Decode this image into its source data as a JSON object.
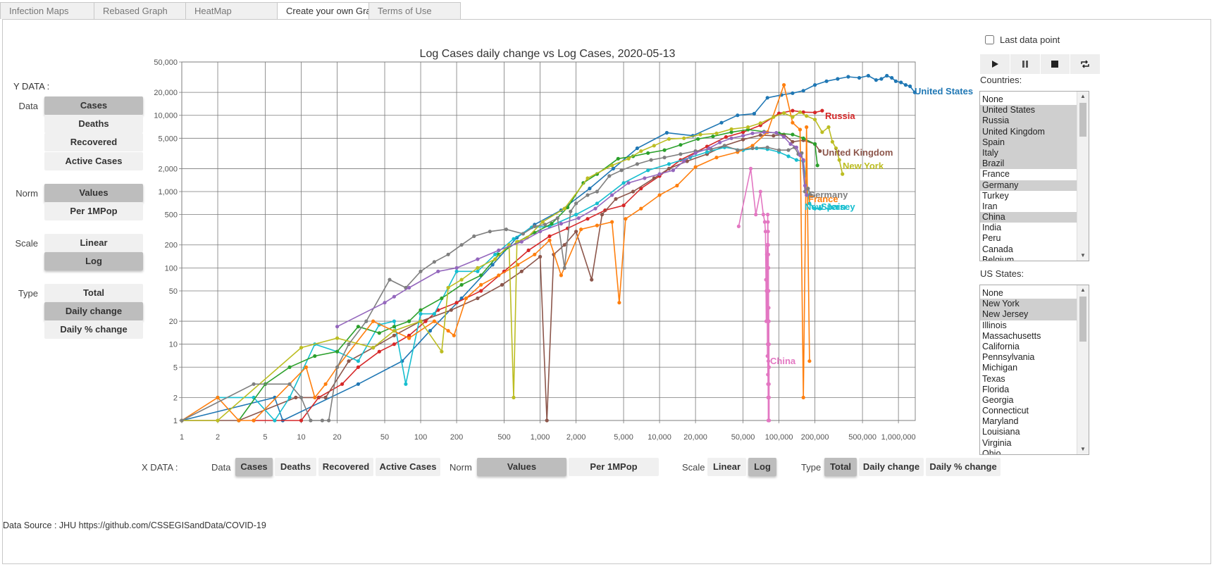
{
  "tabs": [
    {
      "label": "Infection Maps",
      "active": false
    },
    {
      "label": "Rebased Graph",
      "active": false
    },
    {
      "label": "HeatMap",
      "active": false
    },
    {
      "label": "Create your own Gra|",
      "active": true
    },
    {
      "label": "Terms of Use",
      "active": false
    }
  ],
  "ydata": {
    "title": "Y DATA :",
    "rows": [
      {
        "label": "Data",
        "options": [
          "Cases",
          "Deaths",
          "Recovered",
          "Active Cases"
        ],
        "selected": "Cases"
      },
      {
        "label": "Norm",
        "options": [
          "Values",
          "Per 1MPop"
        ],
        "selected": "Values"
      },
      {
        "label": "Scale",
        "options": [
          "Linear",
          "Log"
        ],
        "selected": "Log"
      },
      {
        "label": "Type",
        "options": [
          "Total",
          "Daily change",
          "Daily % change"
        ],
        "selected": "Daily change"
      }
    ]
  },
  "xdata": {
    "title": "X DATA :",
    "data_label": "Data",
    "data_options": [
      "Cases",
      "Deaths",
      "Recovered",
      "Active Cases"
    ],
    "data_selected": "Cases",
    "norm_label": "Norm",
    "norm_options": [
      "Values",
      "Per 1MPop"
    ],
    "norm_selected": "Values",
    "scale_label": "Scale",
    "scale_options": [
      "Linear",
      "Log"
    ],
    "scale_selected": "Log",
    "type_label": "Type",
    "type_options": [
      "Total",
      "Daily change",
      "Daily % change"
    ],
    "type_selected": "Total"
  },
  "controls": {
    "last_data_point_label": "Last data point",
    "last_data_point_checked": false,
    "media_icons": [
      "play-icon",
      "pause-icon",
      "stop-icon",
      "loop-icon"
    ]
  },
  "countries": {
    "title": "Countries:",
    "items": [
      {
        "label": "None",
        "selected": false
      },
      {
        "label": "United States",
        "selected": true
      },
      {
        "label": "Russia",
        "selected": true
      },
      {
        "label": "United Kingdom",
        "selected": true
      },
      {
        "label": "Spain",
        "selected": true
      },
      {
        "label": "Italy",
        "selected": true
      },
      {
        "label": "Brazil",
        "selected": true
      },
      {
        "label": "France",
        "selected": false
      },
      {
        "label": "Germany",
        "selected": true
      },
      {
        "label": "Turkey",
        "selected": false
      },
      {
        "label": "Iran",
        "selected": false
      },
      {
        "label": "China",
        "selected": true
      },
      {
        "label": "India",
        "selected": false
      },
      {
        "label": "Peru",
        "selected": false
      },
      {
        "label": "Canada",
        "selected": false
      },
      {
        "label": "Belgium",
        "selected": false
      }
    ]
  },
  "us_states": {
    "title": "US States:",
    "items": [
      {
        "label": "None",
        "selected": false
      },
      {
        "label": "New York",
        "selected": true
      },
      {
        "label": "New Jersey",
        "selected": true
      },
      {
        "label": "Illinois",
        "selected": false
      },
      {
        "label": "Massachusetts",
        "selected": false
      },
      {
        "label": "California",
        "selected": false
      },
      {
        "label": "Pennsylvania",
        "selected": false
      },
      {
        "label": "Michigan",
        "selected": false
      },
      {
        "label": "Texas",
        "selected": false
      },
      {
        "label": "Florida",
        "selected": false
      },
      {
        "label": "Georgia",
        "selected": false
      },
      {
        "label": "Connecticut",
        "selected": false
      },
      {
        "label": "Maryland",
        "selected": false
      },
      {
        "label": "Louisiana",
        "selected": false
      },
      {
        "label": "Virginia",
        "selected": false
      },
      {
        "label": "Ohio",
        "selected": false
      }
    ]
  },
  "footer": {
    "text": "Data Source : JHU https://github.com/CSSEGISandData/COVID-19"
  },
  "chart_data": {
    "type": "line",
    "title": "Log Cases daily change vs Log Cases, 2020-05-13",
    "xscale": "log",
    "yscale": "log",
    "xlim": [
      1,
      1400000
    ],
    "ylim": [
      0.8,
      50000
    ],
    "grid": true,
    "x_ticks": [
      1,
      2,
      5,
      10,
      20,
      50,
      100,
      200,
      500,
      1000,
      2000,
      5000,
      10000,
      20000,
      50000,
      100000,
      200000,
      500000,
      1000000
    ],
    "x_tick_labels": [
      "1",
      "2",
      "5",
      "10",
      "20",
      "50",
      "100",
      "200",
      "500",
      "1,000",
      "2,000",
      "5,000",
      "10,000",
      "20,000",
      "50,000",
      "100,000",
      "200,000",
      "500,000",
      "1,000,000"
    ],
    "y_ticks": [
      1,
      2,
      5,
      10,
      20,
      50,
      100,
      200,
      500,
      1000,
      2000,
      5000,
      10000,
      20000,
      50000
    ],
    "y_tick_labels": [
      "1",
      "2",
      "5",
      "10",
      "20",
      "50",
      "100",
      "200",
      "500",
      "1,000",
      "2,000",
      "5,000",
      "10,000",
      "20,000",
      "50,000"
    ],
    "series": [
      {
        "name": "United States",
        "color": "#1f77b4",
        "x": [
          1,
          6,
          7,
          30,
          70,
          120,
          220,
          400,
          640,
          900,
          1500,
          2600,
          4100,
          6500,
          11500,
          19000,
          33000,
          45000,
          62000,
          80000,
          105000,
          130000,
          160000,
          200000,
          250000,
          310000,
          380000,
          470000,
          560000,
          650000,
          720000,
          800000,
          880000,
          950000,
          1050000,
          1150000,
          1250000,
          1370000
        ],
        "y": [
          1,
          2,
          1,
          3,
          6,
          15,
          40,
          110,
          250,
          370,
          570,
          1100,
          2000,
          3700,
          5900,
          5400,
          8000,
          10000,
          10500,
          17000,
          18500,
          19500,
          21000,
          25000,
          28000,
          30000,
          32000,
          31000,
          33000,
          29000,
          30000,
          33000,
          31000,
          28000,
          27000,
          25000,
          24000,
          20000
        ],
        "label_x": 1400000,
        "label_y": 20000
      },
      {
        "name": "Russia",
        "color": "#d62728",
        "x": [
          4,
          10,
          14,
          22,
          30,
          45,
          60,
          80,
          110,
          140,
          200,
          320,
          500,
          800,
          1200,
          1700,
          2500,
          3500,
          5000,
          7000,
          10000,
          15000,
          25000,
          36000,
          50000,
          70000,
          100000,
          130000,
          160000,
          200000,
          230000
        ],
        "y": [
          1,
          1,
          2,
          3,
          5,
          8,
          10,
          13,
          20,
          28,
          35,
          50,
          90,
          170,
          260,
          330,
          440,
          570,
          660,
          1100,
          1600,
          2600,
          3900,
          5200,
          6000,
          7400,
          10600,
          11500,
          11000,
          10900,
          11500
        ],
        "label_x": 240000,
        "label_y": 10500
      },
      {
        "name": "United Kingdom",
        "color": "#8c564b",
        "x": [
          1,
          3,
          9,
          16,
          25,
          40,
          60,
          100,
          180,
          300,
          480,
          700,
          1000,
          1140,
          1300,
          1600,
          2000,
          2700,
          3300,
          4300,
          6000,
          9000,
          12000,
          17000,
          25000,
          35000,
          50000,
          70000,
          90000,
          110000,
          130000,
          160000,
          200000,
          220000
        ],
        "y": [
          1,
          1,
          2,
          2,
          6,
          9,
          13,
          20,
          28,
          40,
          60,
          90,
          140,
          1,
          150,
          200,
          300,
          70,
          500,
          800,
          1000,
          1500,
          2000,
          2500,
          3100,
          4000,
          4800,
          5500,
          5400,
          5600,
          4500,
          4700,
          4200,
          3400
        ],
        "label_x": 230000,
        "label_y": 3100
      },
      {
        "name": "Spain",
        "color": "#17becf",
        "x": [
          2,
          4,
          6,
          8,
          13,
          20,
          30,
          45,
          60,
          75,
          100,
          130,
          200,
          300,
          420,
          600,
          850,
          1200,
          2000,
          3000,
          5000,
          8000,
          12000,
          18000,
          25000,
          35000,
          50000,
          65000,
          80000,
          100000,
          120000,
          140000,
          160000,
          180000,
          200000,
          220000
        ],
        "y": [
          2,
          2,
          1,
          2,
          10,
          8,
          6,
          18,
          20,
          3,
          25,
          25,
          90,
          90,
          150,
          240,
          340,
          350,
          500,
          700,
          1300,
          1900,
          2300,
          2800,
          3300,
          3800,
          3500,
          3700,
          3600,
          3300,
          2900,
          2600,
          2500,
          700,
          600,
          600
        ],
        "label_x": 225000,
        "label_y": 560
      },
      {
        "name": "Italy",
        "color": "#2ca02c",
        "x": [
          3,
          5,
          8,
          13,
          20,
          30,
          45,
          60,
          80,
          100,
          150,
          220,
          320,
          450,
          650,
          900,
          1250,
          1700,
          2300,
          3000,
          4500,
          6000,
          8000,
          11000,
          15000,
          21000,
          28000,
          40000,
          55000,
          75000,
          100000,
          130000,
          160000,
          200000,
          210000
        ],
        "y": [
          1,
          3,
          5,
          7,
          8,
          17,
          14,
          17,
          20,
          28,
          40,
          60,
          80,
          150,
          220,
          290,
          380,
          620,
          1300,
          1700,
          2700,
          2900,
          3200,
          3500,
          4100,
          4900,
          5300,
          6000,
          6500,
          6100,
          5800,
          5600,
          5000,
          4200,
          2200
        ],
        "label_x": null,
        "label_y": null
      },
      {
        "name": "Brazil",
        "color": "#ff7f0e",
        "x": [
          1,
          2,
          3,
          4,
          11,
          13,
          16,
          20,
          40,
          80,
          130,
          170,
          190,
          240,
          320,
          450,
          650,
          900,
          1200,
          1500,
          2200,
          3000,
          4000,
          4600,
          5200,
          7000,
          10000,
          14000,
          20000,
          30000,
          45000,
          60000,
          80000,
          110000,
          130000,
          150000,
          160000,
          170000,
          180000
        ],
        "y": [
          1,
          2,
          1,
          1,
          5,
          2,
          3,
          5,
          20,
          12,
          20,
          15,
          13,
          40,
          60,
          80,
          110,
          150,
          230,
          80,
          320,
          360,
          400,
          35,
          440,
          600,
          900,
          1200,
          2100,
          2800,
          3300,
          4000,
          6000,
          25000,
          8000,
          6500,
          2,
          7000,
          6
        ],
        "label_x": null,
        "label_y": null
      },
      {
        "name": "New York",
        "color": "#bcbd22",
        "x": [
          1,
          2,
          10,
          20,
          40,
          60,
          100,
          150,
          170,
          220,
          300,
          420,
          550,
          600,
          640,
          780,
          1050,
          1600,
          2500,
          4000,
          5500,
          7000,
          9000,
          12000,
          16000,
          22000,
          30000,
          40000,
          55000,
          70000,
          90000,
          110000,
          130000,
          150000,
          170000,
          200000,
          230000,
          260000,
          280000,
          300000,
          320000,
          340000
        ],
        "y": [
          1,
          1,
          9,
          12,
          9,
          15,
          20,
          8,
          55,
          70,
          100,
          130,
          200,
          2,
          220,
          250,
          400,
          600,
          1500,
          2200,
          2700,
          3400,
          4000,
          4900,
          5000,
          5600,
          5800,
          6600,
          7000,
          7900,
          9500,
          10700,
          9500,
          11000,
          9800,
          8800,
          6000,
          7000,
          4500,
          3700,
          2600,
          1700
        ],
        "label_x": 340000,
        "label_y": 2200
      },
      {
        "name": "New Jersey",
        "color": "#7f7f7f",
        "x": [
          1,
          4,
          8,
          10,
          12,
          15,
          17,
          20,
          25,
          35,
          55,
          75,
          100,
          130,
          170,
          220,
          280,
          380,
          520,
          720,
          900,
          1100,
          1400,
          1600,
          1800,
          2000,
          2500,
          3000,
          3800,
          4800,
          6500,
          8500,
          11000,
          15000,
          20000,
          27000,
          35000,
          45000,
          60000,
          80000,
          100000,
          120000,
          135000,
          145000,
          155000,
          165000,
          175000,
          185000
        ],
        "y": [
          1,
          3,
          3,
          2,
          1,
          1,
          1,
          5,
          10,
          20,
          70,
          55,
          90,
          120,
          150,
          200,
          260,
          300,
          320,
          280,
          350,
          370,
          450,
          100,
          550,
          700,
          900,
          1000,
          1600,
          1900,
          2300,
          2600,
          2800,
          3100,
          3400,
          3600,
          4000,
          3500,
          3700,
          3800,
          3500,
          3500,
          3800,
          3100,
          3200,
          1000,
          1100,
          900
        ],
        "label_x": null,
        "label_y": null
      },
      {
        "name": "Germany",
        "color": "#9467bd",
        "x": [
          20,
          50,
          60,
          80,
          140,
          200,
          300,
          450,
          700,
          1000,
          1500,
          2100,
          2900,
          4000,
          5500,
          7500,
          10000,
          13000,
          16000,
          20000,
          26000,
          32000,
          40000,
          50000,
          60000,
          75000,
          95000,
          110000,
          125000,
          140000,
          150000,
          160000,
          165000,
          170000
        ],
        "y": [
          17,
          35,
          42,
          55,
          90,
          100,
          130,
          170,
          220,
          300,
          380,
          450,
          600,
          900,
          1300,
          1500,
          1700,
          1900,
          2500,
          3200,
          3700,
          4400,
          5000,
          5400,
          5800,
          6000,
          5900,
          5200,
          4200,
          3800,
          3000,
          2600,
          1200,
          900
        ],
        "label_x": null,
        "label_y": null
      },
      {
        "name": "China",
        "color": "#e377c2",
        "x": [
          46000,
          58000,
          64000,
          70000,
          74000,
          76000,
          77000,
          77800,
          78200,
          78600,
          79000,
          79500,
          80000,
          80300,
          80500,
          80700,
          80800,
          80900,
          81000,
          81100,
          81200,
          81300,
          81400,
          81500,
          81600,
          81700,
          81800,
          81900,
          82000,
          82100,
          82200,
          82300,
          82400,
          82500,
          82600,
          82700
        ],
        "y": [
          350,
          2000,
          500,
          1000,
          500,
          400,
          300,
          70,
          20,
          50,
          150,
          200,
          7,
          10,
          500,
          4,
          400,
          3,
          300,
          2,
          200,
          1,
          150,
          6,
          100,
          20,
          50,
          10,
          30,
          5,
          20,
          3,
          10,
          2,
          5,
          1
        ],
        "label_x": 82800,
        "label_y": 6
      },
      {
        "name": "France",
        "color": "#ff7f0e",
        "x": [],
        "y": [],
        "label_x": null,
        "label_y": null
      }
    ],
    "annotations": [
      {
        "text": "United States",
        "color": "#1f77b4"
      },
      {
        "text": "Russia",
        "color": "#d62728"
      },
      {
        "text": "United Kingdom",
        "color": "#8c564b"
      },
      {
        "text": "New York",
        "color": "#bcbd22"
      },
      {
        "text": "Germany",
        "color": "#7f7f7f"
      },
      {
        "text": "France",
        "color": "#ff7f0e"
      },
      {
        "text": "Spain",
        "color": "#17becf"
      },
      {
        "text": "New Jersey",
        "color": "#17becf"
      },
      {
        "text": "China",
        "color": "#e377c2"
      }
    ]
  }
}
